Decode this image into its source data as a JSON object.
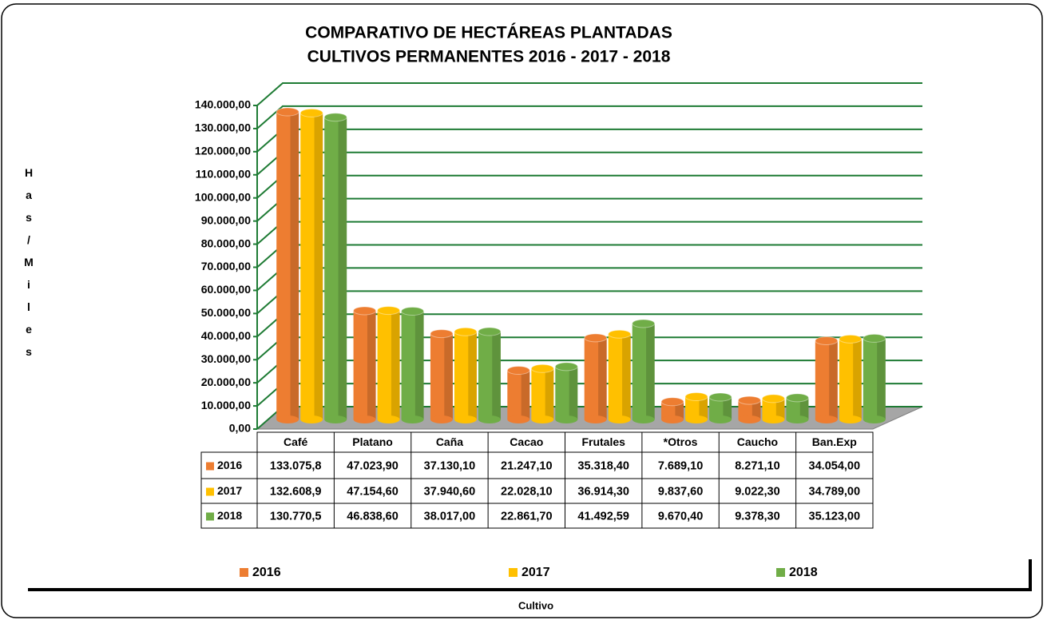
{
  "chart_data": {
    "type": "bar3d",
    "title": "COMPARATIVO DE HECTÁREAS PLANTADAS",
    "subtitle": "CULTIVOS PERMANENTES  2016 - 2017 - 2018",
    "y_label": "Has/Miles",
    "x_label": "Cultivo",
    "categories": [
      "Café",
      "Platano",
      "Caña",
      "Cacao",
      "Frutales",
      "*Otros",
      "Caucho",
      "Ban.Exp"
    ],
    "series": [
      {
        "name": "2016",
        "color": "#ed7d31",
        "values": [
          133075.8,
          47023.9,
          37130.1,
          21247.1,
          35318.4,
          7689.1,
          8271.1,
          34054.0
        ],
        "value_labels": [
          "133.075,8",
          "47.023,90",
          "37.130,10",
          "21.247,10",
          "35.318,40",
          "7.689,10",
          "8.271,10",
          "34.054,00"
        ]
      },
      {
        "name": "2017",
        "color": "#ffc000",
        "values": [
          132608.9,
          47154.6,
          37940.6,
          22028.1,
          36914.3,
          9837.6,
          9022.3,
          34789.0
        ],
        "value_labels": [
          "132.608,9",
          "47.154,60",
          "37.940,60",
          "22.028,10",
          "36.914,30",
          "9.837,60",
          "9.022,30",
          "34.789,00"
        ]
      },
      {
        "name": "2018",
        "color": "#70ad47",
        "values": [
          130770.5,
          46838.6,
          38017.0,
          22861.7,
          41492.59,
          9670.4,
          9378.3,
          35123.0
        ],
        "value_labels": [
          "130.770,5",
          "46.838,60",
          "38.017,00",
          "22.861,70",
          "41.492,59",
          "9.670,40",
          "9.378,30",
          "35.123,00"
        ]
      }
    ],
    "ylim": [
      0,
      140000
    ],
    "yticks": [
      {
        "value": 0,
        "label": "0,00"
      },
      {
        "value": 10000,
        "label": "10.000,00"
      },
      {
        "value": 20000,
        "label": "20.000,00"
      },
      {
        "value": 30000,
        "label": "30.000,00"
      },
      {
        "value": 40000,
        "label": "40.000,00"
      },
      {
        "value": 50000,
        "label": "50.000,00"
      },
      {
        "value": 60000,
        "label": "60.000,00"
      },
      {
        "value": 70000,
        "label": "70.000,00"
      },
      {
        "value": 80000,
        "label": "80.000,00"
      },
      {
        "value": 90000,
        "label": "90.000,00"
      },
      {
        "value": 100000,
        "label": "100.000,00"
      },
      {
        "value": 110000,
        "label": "110.000,00"
      },
      {
        "value": 120000,
        "label": "120.000,00"
      },
      {
        "value": 130000,
        "label": "130.000,00"
      },
      {
        "value": 140000,
        "label": "140.000,00"
      }
    ],
    "grid": true,
    "grid_color": "#1e7b34",
    "legend": "bottom"
  }
}
